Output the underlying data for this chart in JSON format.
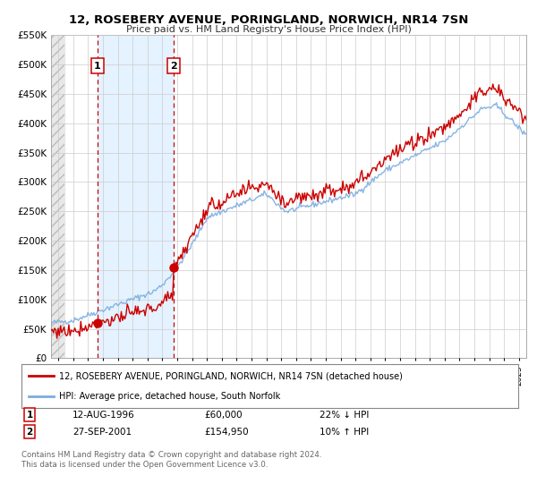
{
  "title": "12, ROSEBERY AVENUE, PORINGLAND, NORWICH, NR14 7SN",
  "subtitle": "Price paid vs. HM Land Registry's House Price Index (HPI)",
  "legend_line1": "12, ROSEBERY AVENUE, PORINGLAND, NORWICH, NR14 7SN (detached house)",
  "legend_line2": "HPI: Average price, detached house, South Norfolk",
  "transaction1_date": "12-AUG-1996",
  "transaction1_price": 60000,
  "transaction1_hpi": "22% ↓ HPI",
  "transaction2_date": "27-SEP-2001",
  "transaction2_price": 154950,
  "transaction2_hpi": "10% ↑ HPI",
  "footer1": "Contains HM Land Registry data © Crown copyright and database right 2024.",
  "footer2": "This data is licensed under the Open Government Licence v3.0.",
  "red_line_color": "#cc0000",
  "blue_line_color": "#7aade0",
  "bg_color": "#ffffff",
  "shaded_region_color": "#ddeeff",
  "vline_color": "#cc0000",
  "grid_color": "#cccccc",
  "ylim": [
    0,
    550000
  ],
  "ytick_vals": [
    0,
    50000,
    100000,
    150000,
    200000,
    250000,
    300000,
    350000,
    400000,
    450000,
    500000,
    550000
  ],
  "ytick_labels": [
    "£0",
    "£50K",
    "£100K",
    "£150K",
    "£200K",
    "£250K",
    "£300K",
    "£350K",
    "£400K",
    "£450K",
    "£500K",
    "£550K"
  ],
  "xlim_start": 1993.5,
  "xlim_end": 2025.5,
  "transaction1_x": 1996.614,
  "transaction2_x": 2001.745,
  "hatch_end": 1994.42
}
